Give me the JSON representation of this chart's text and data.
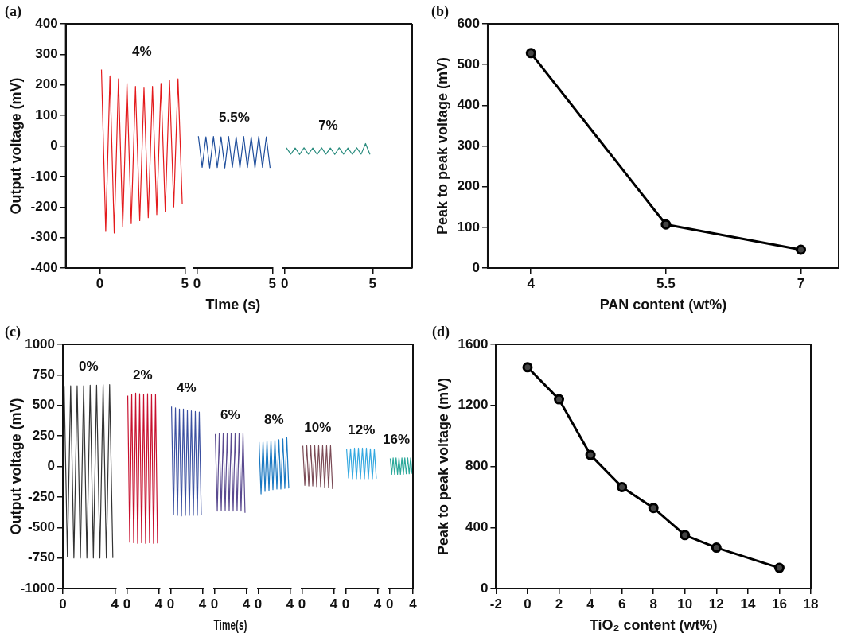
{
  "chart_data": [
    {
      "type": "line",
      "title": "(a)",
      "ylabel": "Output voltage (mV)",
      "xlim": [
        -2,
        5
      ],
      "xticks": [
        0,
        5
      ],
      "ylim": [
        -400,
        400
      ],
      "yticks": [
        -400,
        -300,
        -200,
        -100,
        0,
        100,
        200,
        300,
        400
      ],
      "series": [
        {
          "name": "4%",
          "color": "#e41a1c",
          "x": [
            0.1,
            0.35,
            0.6,
            0.85,
            1.1,
            1.35,
            1.6,
            1.85,
            2.1,
            2.35,
            2.6,
            2.85,
            3.1,
            3.35,
            3.6,
            3.85,
            4.1,
            4.35,
            4.6,
            4.85
          ],
          "values": [
            250,
            -280,
            230,
            -285,
            220,
            -265,
            205,
            -255,
            195,
            -245,
            190,
            -235,
            195,
            -225,
            205,
            -215,
            215,
            -200,
            220,
            -190
          ]
        }
      ]
    },
    {
      "type": "line",
      "xlabel": "Time (s)",
      "tick_labels": "x",
      "xlim": [
        -0.2,
        5
      ],
      "xticks": [
        0,
        5
      ],
      "ylim": [
        -400,
        400
      ],
      "yticks": [
        -400,
        -300,
        -200,
        -100,
        0,
        100,
        200,
        300,
        400
      ],
      "series": [
        {
          "name": "5.5%",
          "color": "#1f4e9c",
          "x": [
            0.1,
            0.35,
            0.6,
            0.85,
            1.1,
            1.35,
            1.6,
            1.85,
            2.1,
            2.35,
            2.6,
            2.85,
            3.1,
            3.35,
            3.6,
            3.85,
            4.1,
            4.35,
            4.6,
            4.85
          ],
          "values": [
            32,
            -70,
            30,
            -72,
            31,
            -71,
            30,
            -72,
            31,
            -70,
            30,
            -72,
            31,
            -71,
            30,
            -72,
            31,
            -70,
            30,
            -72
          ]
        }
      ]
    },
    {
      "type": "line",
      "tick_labels": "x",
      "xlim": [
        -0.1,
        7.25
      ],
      "xticks": [
        0,
        5
      ],
      "ylim": [
        -400,
        400
      ],
      "yticks": [
        -400,
        -300,
        -200,
        -100,
        0,
        100,
        200,
        300,
        400
      ],
      "series": [
        {
          "name": "7%",
          "color": "#2a8c7e",
          "x": [
            0.1,
            0.35,
            0.6,
            0.85,
            1.1,
            1.35,
            1.6,
            1.85,
            2.1,
            2.35,
            2.6,
            2.85,
            3.1,
            3.35,
            3.6,
            3.85,
            4.1,
            4.35,
            4.6,
            4.85
          ],
          "values": [
            -6,
            -27,
            -7,
            -28,
            -6,
            -27,
            -7,
            -28,
            -6,
            -27,
            -7,
            -28,
            -6,
            -27,
            -7,
            -28,
            -6,
            -27,
            8,
            -28
          ]
        }
      ]
    },
    {
      "type": "line",
      "title": "(b)",
      "xlabel": "PAN content (wt%)",
      "ylabel": "Peak to peak voltage (mV)",
      "marker": "circle",
      "xlim": [
        3.52,
        7.42
      ],
      "xticks": [
        4,
        5.5,
        7
      ],
      "ylim": [
        0,
        600
      ],
      "yticks": [
        0,
        100,
        200,
        300,
        400,
        500,
        600
      ],
      "series": [
        {
          "color": "#000000",
          "x": [
            4,
            5.5,
            7
          ],
          "values": [
            528,
            107,
            45
          ]
        }
      ]
    },
    {
      "type": "line",
      "title": "(c)",
      "ylabel": "Output voltage (mV)",
      "xlim": [
        0,
        4.1
      ],
      "xticks": [
        0,
        4
      ],
      "ylim": [
        -1000,
        1000
      ],
      "yticks": [
        -1000,
        -750,
        -500,
        -250,
        0,
        250,
        500,
        750,
        1000
      ],
      "series": [
        {
          "name": "0%",
          "color": "#333333",
          "x": [
            0.1,
            0.35,
            0.6,
            0.85,
            1.1,
            1.35,
            1.6,
            1.85,
            2.1,
            2.35,
            2.6,
            2.85,
            3.1,
            3.35,
            3.6,
            3.85
          ],
          "values": [
            660,
            -740,
            660,
            -750,
            660,
            -750,
            660,
            -750,
            665,
            -750,
            665,
            -750,
            670,
            -750,
            670,
            -750
          ]
        }
      ]
    },
    {
      "type": "line",
      "tick_labels": "x",
      "xlim": [
        -0.1,
        4.1
      ],
      "xticks": [
        0,
        4
      ],
      "ylim": [
        -1000,
        1000
      ],
      "yticks": [
        -1000,
        -750,
        -500,
        -250,
        0,
        250,
        500,
        750,
        1000
      ],
      "series": [
        {
          "name": "2%",
          "color": "#c8102e",
          "x": [
            0.1,
            0.35,
            0.6,
            0.85,
            1.1,
            1.35,
            1.6,
            1.85,
            2.1,
            2.35,
            2.6,
            2.85,
            3.1,
            3.35,
            3.6,
            3.85
          ],
          "values": [
            580,
            -620,
            590,
            -625,
            600,
            -630,
            595,
            -625,
            590,
            -630,
            595,
            -625,
            590,
            -630,
            590,
            -630
          ]
        }
      ]
    },
    {
      "type": "line",
      "tick_labels": "x",
      "xlim": [
        -0.1,
        4.1
      ],
      "xticks": [
        0,
        4
      ],
      "ylim": [
        -1000,
        1000
      ],
      "yticks": [
        -1000,
        -750,
        -500,
        -250,
        0,
        250,
        500,
        750,
        1000
      ],
      "series": [
        {
          "name": "4%",
          "color": "#3a4fa0",
          "x": [
            0.1,
            0.35,
            0.6,
            0.85,
            1.1,
            1.35,
            1.6,
            1.85,
            2.1,
            2.35,
            2.6,
            2.85,
            3.1,
            3.35,
            3.6,
            3.85
          ],
          "values": [
            490,
            -395,
            480,
            -400,
            470,
            -405,
            470,
            -400,
            460,
            -400,
            455,
            -400,
            450,
            -400,
            445,
            -395
          ]
        }
      ]
    },
    {
      "type": "line",
      "xlabel": "Time(s)",
      "tick_labels": "x",
      "xlim": [
        -0.1,
        4.1
      ],
      "xticks": [
        0,
        4
      ],
      "ylim": [
        -1000,
        1000
      ],
      "yticks": [
        -1000,
        -750,
        -500,
        -250,
        0,
        250,
        500,
        750,
        1000
      ],
      "series": [
        {
          "name": "6%",
          "color": "#5a4a90",
          "x": [
            0.1,
            0.35,
            0.6,
            0.85,
            1.1,
            1.35,
            1.6,
            1.85,
            2.1,
            2.35,
            2.6,
            2.85,
            3.1,
            3.35,
            3.6,
            3.85
          ],
          "values": [
            265,
            -365,
            270,
            -360,
            270,
            -360,
            270,
            -360,
            270,
            -365,
            270,
            -360,
            270,
            -365,
            270,
            -380
          ]
        }
      ]
    },
    {
      "type": "line",
      "tick_labels": "x",
      "xlim": [
        -0.1,
        4.1
      ],
      "xticks": [
        0,
        4
      ],
      "ylim": [
        -1000,
        1000
      ],
      "yticks": [
        -1000,
        -750,
        -500,
        -250,
        0,
        250,
        500,
        750,
        1000
      ],
      "series": [
        {
          "name": "8%",
          "color": "#1a78c2",
          "x": [
            0.1,
            0.35,
            0.6,
            0.85,
            1.1,
            1.35,
            1.6,
            1.85,
            2.1,
            2.35,
            2.6,
            2.85,
            3.1,
            3.35,
            3.6,
            3.85
          ],
          "values": [
            200,
            -225,
            200,
            -205,
            205,
            -195,
            210,
            -190,
            215,
            -185,
            220,
            -185,
            225,
            -180,
            235,
            -180
          ]
        }
      ]
    },
    {
      "type": "line",
      "tick_labels": "x",
      "xlim": [
        -0.1,
        4.1
      ],
      "xticks": [
        0,
        4
      ],
      "ylim": [
        -1000,
        1000
      ],
      "yticks": [
        -1000,
        -750,
        -500,
        -250,
        0,
        250,
        500,
        750,
        1000
      ],
      "series": [
        {
          "name": "10%",
          "color": "#7a4a55",
          "x": [
            0.1,
            0.35,
            0.6,
            0.85,
            1.1,
            1.35,
            1.6,
            1.85,
            2.1,
            2.35,
            2.6,
            2.85,
            3.1,
            3.35,
            3.6,
            3.85
          ],
          "values": [
            170,
            -155,
            170,
            -160,
            170,
            -160,
            170,
            -165,
            170,
            -165,
            170,
            -170,
            170,
            -175,
            170,
            -185
          ]
        }
      ]
    },
    {
      "type": "line",
      "tick_labels": "x",
      "xlim": [
        -0.1,
        4.1
      ],
      "xticks": [
        0,
        4
      ],
      "ylim": [
        -1000,
        1000
      ],
      "yticks": [
        -1000,
        -750,
        -500,
        -250,
        0,
        250,
        500,
        750,
        1000
      ],
      "series": [
        {
          "name": "12%",
          "color": "#33a8e0",
          "x": [
            0.1,
            0.35,
            0.6,
            0.85,
            1.1,
            1.35,
            1.6,
            1.85,
            2.1,
            2.35,
            2.6,
            2.85,
            3.1,
            3.35,
            3.6,
            3.85
          ],
          "values": [
            145,
            -95,
            145,
            -100,
            150,
            -100,
            150,
            -100,
            150,
            -100,
            150,
            -100,
            145,
            -100,
            140,
            -100
          ]
        }
      ]
    },
    {
      "type": "line",
      "tick_labels": "x",
      "xlim": [
        -0.1,
        4
      ],
      "xticks": [
        0,
        4
      ],
      "ylim": [
        -1000,
        1000
      ],
      "yticks": [
        -1000,
        -750,
        -500,
        -250,
        0,
        250,
        500,
        750,
        1000
      ],
      "series": [
        {
          "name": "16%",
          "color": "#2aa89a",
          "x": [
            0.1,
            0.35,
            0.6,
            0.85,
            1.1,
            1.35,
            1.6,
            1.85,
            2.1,
            2.35,
            2.6,
            2.85,
            3.1,
            3.35,
            3.6,
            3.85
          ],
          "values": [
            65,
            -65,
            70,
            -65,
            70,
            -65,
            70,
            -65,
            70,
            -65,
            70,
            -60,
            70,
            -60,
            70,
            -60
          ]
        }
      ]
    },
    {
      "type": "line",
      "title": "(d)",
      "xlabel": "TiO₂ content (wt%)",
      "ylabel": "Peak to peak voltage (mV)",
      "marker": "circle",
      "xlim": [
        -2,
        18
      ],
      "xticks": [
        -2,
        0,
        2,
        4,
        6,
        8,
        10,
        12,
        14,
        16,
        18
      ],
      "ylim": [
        0,
        1600
      ],
      "yticks": [
        0,
        400,
        800,
        1200,
        1600
      ],
      "series": [
        {
          "color": "#000000",
          "x": [
            0,
            2,
            4,
            6,
            8,
            10,
            12,
            16
          ],
          "values": [
            1450,
            1240,
            875,
            665,
            528,
            350,
            268,
            135
          ]
        }
      ]
    }
  ]
}
